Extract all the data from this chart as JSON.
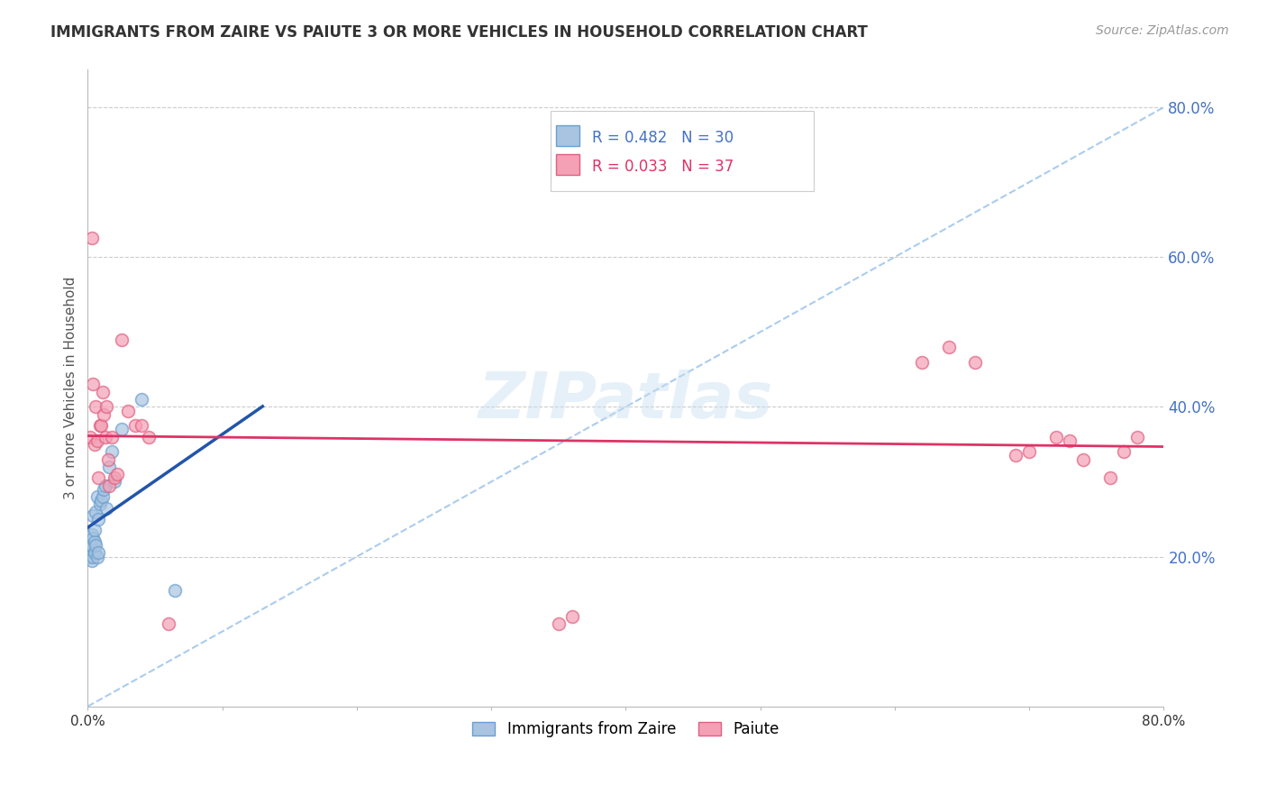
{
  "title": "IMMIGRANTS FROM ZAIRE VS PAIUTE 3 OR MORE VEHICLES IN HOUSEHOLD CORRELATION CHART",
  "source": "Source: ZipAtlas.com",
  "ylabel": "3 or more Vehicles in Household",
  "xlim": [
    0.0,
    0.8
  ],
  "ylim": [
    0.0,
    0.85
  ],
  "zaire_color": "#a8c4e0",
  "zaire_edge_color": "#6a9fd0",
  "paiute_color": "#f4a0b5",
  "paiute_edge_color": "#e06080",
  "zaire_line_color": "#2255aa",
  "paiute_line_color": "#dd3366",
  "dashed_line_color": "#aaccee",
  "legend_r1": "R = 0.482",
  "legend_n1": "N = 30",
  "legend_r2": "R = 0.033",
  "legend_n2": "N = 37",
  "legend_label1": "Immigrants from Zaire",
  "legend_label2": "Paiute",
  "watermark": "ZIPatlas",
  "background_color": "#ffffff",
  "zaire_x": [
    0.001,
    0.002,
    0.002,
    0.003,
    0.003,
    0.003,
    0.004,
    0.004,
    0.004,
    0.005,
    0.005,
    0.005,
    0.006,
    0.006,
    0.007,
    0.007,
    0.008,
    0.008,
    0.009,
    0.01,
    0.011,
    0.012,
    0.013,
    0.014,
    0.016,
    0.018,
    0.02,
    0.025,
    0.04,
    0.065
  ],
  "zaire_y": [
    0.2,
    0.21,
    0.215,
    0.195,
    0.215,
    0.23,
    0.2,
    0.225,
    0.255,
    0.205,
    0.22,
    0.235,
    0.215,
    0.26,
    0.2,
    0.28,
    0.205,
    0.25,
    0.27,
    0.275,
    0.28,
    0.29,
    0.295,
    0.265,
    0.32,
    0.34,
    0.3,
    0.37,
    0.41,
    0.155
  ],
  "paiute_x": [
    0.002,
    0.003,
    0.004,
    0.005,
    0.006,
    0.007,
    0.008,
    0.009,
    0.01,
    0.011,
    0.012,
    0.013,
    0.014,
    0.015,
    0.016,
    0.018,
    0.02,
    0.022,
    0.025,
    0.03,
    0.035,
    0.04,
    0.045,
    0.06,
    0.35,
    0.36,
    0.62,
    0.64,
    0.66,
    0.69,
    0.7,
    0.72,
    0.73,
    0.74,
    0.76,
    0.77,
    0.78
  ],
  "paiute_y": [
    0.36,
    0.625,
    0.43,
    0.35,
    0.4,
    0.355,
    0.305,
    0.375,
    0.375,
    0.42,
    0.39,
    0.36,
    0.4,
    0.33,
    0.295,
    0.36,
    0.305,
    0.31,
    0.49,
    0.395,
    0.375,
    0.375,
    0.36,
    0.11,
    0.11,
    0.12,
    0.46,
    0.48,
    0.46,
    0.335,
    0.34,
    0.36,
    0.355,
    0.33,
    0.305,
    0.34,
    0.36
  ]
}
